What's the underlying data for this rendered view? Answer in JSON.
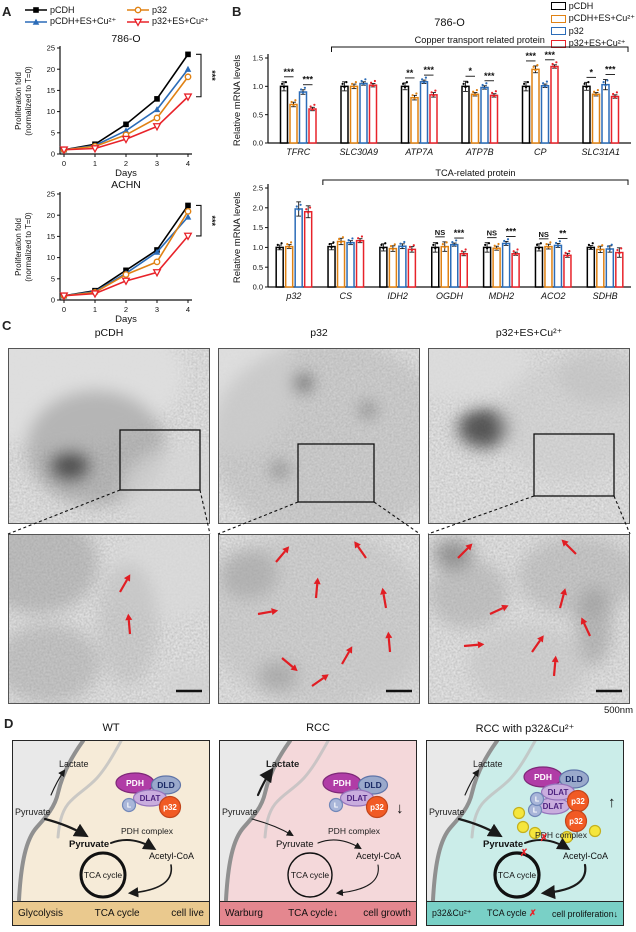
{
  "figure": {
    "panel_a": {
      "letter": "A",
      "legend": [
        {
          "label": "pCDH",
          "color": "#000000",
          "marker": "square-filled"
        },
        {
          "label": "p32",
          "color": "#E08214",
          "marker": "circle-open"
        },
        {
          "label": "pCDH+ES+Cu²⁺",
          "color": "#2B6CB8",
          "marker": "triangle-filled"
        },
        {
          "label": "p32+ES+Cu²⁺",
          "color": "#E8232A",
          "marker": "triangle-down-open"
        }
      ]
    },
    "panel_b": {
      "letter": "B",
      "legend": [
        {
          "label": "pCDH",
          "color": "#000000"
        },
        {
          "label": "pCDH+ES+Cu²⁺",
          "color": "#E08214"
        },
        {
          "label": "p32",
          "color": "#2B6CB8"
        },
        {
          "label": "p32+ES+Cu²⁺",
          "color": "#E8232A"
        }
      ]
    },
    "panel_c": {
      "letter": "C",
      "scale_label": "500nm",
      "columns": [
        {
          "label": "pCDH",
          "arrows": [
            [
              112,
              58,
              -60
            ],
            [
              122,
              100,
              -95
            ]
          ]
        },
        {
          "label": "p32",
          "arrows": [
            [
              58,
              28,
              -50
            ],
            [
              148,
              24,
              -125
            ],
            [
              40,
              80,
              -10
            ],
            [
              98,
              64,
              -85
            ],
            [
              168,
              74,
              -100
            ],
            [
              64,
              124,
              40
            ],
            [
              124,
              130,
              -60
            ],
            [
              172,
              118,
              -95
            ],
            [
              94,
              152,
              -35
            ]
          ]
        },
        {
          "label": "p32+ES+Cu²⁺",
          "arrows": [
            [
              30,
              24,
              -45
            ],
            [
              148,
              20,
              -135
            ],
            [
              62,
              80,
              -25
            ],
            [
              132,
              74,
              -75
            ],
            [
              36,
              112,
              -5
            ],
            [
              104,
              118,
              -55
            ],
            [
              162,
              102,
              -115
            ],
            [
              126,
              142,
              -85
            ]
          ]
        }
      ]
    },
    "panel_d": {
      "letter": "D",
      "outside_color": "#E9E9E9",
      "membrane_color": "#909090",
      "boxes": [
        {
          "title": "WT",
          "cell_color": "#F6EBD8",
          "strip_color": "#EAC98E",
          "labels": {
            "lactate": "Lactate",
            "pyruvate_out": "Pyruvate",
            "pyruvate_in": "Pyruvate",
            "pdh_complex": "PDH complex",
            "acetyl": "Acetyl-CoA",
            "tca": "TCA cycle"
          },
          "bold": {
            "lactate": false,
            "pyruvate_in": true
          },
          "flux": {
            "lactate_arrow": "thin",
            "pyruvate_arrow": "thick",
            "pdh_arrow": "thick",
            "tca_circle": "thick"
          },
          "complex": {
            "pdh": "PDH",
            "dld": "DLD",
            "dlat": "DLAT",
            "l": "L",
            "p32": "p32",
            "p32_trend": null,
            "cu_ions": 0,
            "extra_dlat": false
          },
          "red_x": [],
          "strip": [
            [
              {
                "t": "Glycolysis"
              }
            ],
            [
              {
                "t": "TCA cycle"
              }
            ],
            [
              {
                "t": "cell live"
              }
            ]
          ]
        },
        {
          "title": "RCC",
          "cell_color": "#F4D8DA",
          "strip_color": "#E4878F",
          "labels": {
            "lactate": "Lactate",
            "pyruvate_out": "Pyruvate",
            "pyruvate_in": "Pyruvate",
            "pdh_complex": "PDH complex",
            "acetyl": "Acetyl-CoA",
            "tca": "TCA cycle"
          },
          "bold": {
            "lactate": true,
            "pyruvate_in": false
          },
          "flux": {
            "lactate_arrow": "thick",
            "pyruvate_arrow": "thin",
            "pdh_arrow": "thin",
            "tca_circle": "thin"
          },
          "complex": {
            "pdh": "PDH",
            "dld": "DLD",
            "dlat": "DLAT",
            "l": "L",
            "p32": "p32",
            "p32_trend": "↓",
            "cu_ions": 0,
            "extra_dlat": false
          },
          "red_x": [],
          "strip": [
            [
              {
                "t": "Warburg"
              }
            ],
            [
              {
                "t": "TCA cycle"
              },
              {
                "t": "↓"
              }
            ],
            [
              {
                "t": "cell growth"
              }
            ]
          ]
        },
        {
          "title": "RCC with p32&Cu²⁺",
          "cell_color": "#CBEDE9",
          "strip_color": "#79D0C6",
          "labels": {
            "lactate": "Lactate",
            "pyruvate_out": "Pyruvate",
            "pyruvate_in": "Pyruvate",
            "pdh_complex": "PDH complex",
            "acetyl": "Acetyl-CoA",
            "tca": "TCA cycle"
          },
          "bold": {
            "lactate": false,
            "pyruvate_in": true
          },
          "flux": {
            "lactate_arrow": "thin",
            "pyruvate_arrow": "thick",
            "pdh_arrow": "thick",
            "tca_circle": "thick"
          },
          "complex": {
            "pdh": "PDH",
            "dld": "DLD",
            "dlat": "DLAT",
            "l": "L",
            "p32": "p32",
            "p32_trend": "↑",
            "cu_ions": 5,
            "extra_dlat": true
          },
          "red_x": [
            "pdh_arrow",
            "tca_circle"
          ],
          "strip": [
            [
              {
                "t": "p32&Cu²⁺"
              }
            ],
            [
              {
                "t": "TCA cycle "
              },
              {
                "t": "✗",
                "c": "#E8232A"
              }
            ],
            [
              {
                "t": "cell proliferation"
              },
              {
                "t": "↓"
              }
            ]
          ]
        }
      ]
    }
  },
  "chart_data": [
    {
      "id": "prolif_786o",
      "type": "line",
      "title": "786-O",
      "xlabel": "Days",
      "ylabel_lines": [
        "Proliferation fold",
        "(normalized to T=0)"
      ],
      "x": [
        0,
        1,
        2,
        3,
        4
      ],
      "ylim": [
        0,
        25
      ],
      "yticks": [
        0,
        5,
        10,
        15,
        20,
        25
      ],
      "series": [
        {
          "name": "pCDH",
          "color": "#000000",
          "marker": "square-filled",
          "values": [
            1,
            2.3,
            7.0,
            13.0,
            23.5
          ]
        },
        {
          "name": "pCDH+ES+Cu²⁺",
          "color": "#2B6CB8",
          "marker": "triangle-filled",
          "values": [
            1,
            2.0,
            5.5,
            10.5,
            20.0
          ]
        },
        {
          "name": "p32",
          "color": "#E08214",
          "marker": "circle-open",
          "values": [
            1,
            1.8,
            4.5,
            8.5,
            18.2
          ]
        },
        {
          "name": "p32+ES+Cu²⁺",
          "color": "#E8232A",
          "marker": "triangle-down-open",
          "values": [
            1,
            1.3,
            3.5,
            6.5,
            13.5
          ]
        }
      ],
      "significance": "***"
    },
    {
      "id": "prolif_achn",
      "type": "line",
      "title": "ACHN",
      "xlabel": "Days",
      "ylabel_lines": [
        "Proliferation fold",
        "(normalized to T=0)"
      ],
      "x": [
        0,
        1,
        2,
        3,
        4
      ],
      "ylim": [
        0,
        25
      ],
      "yticks": [
        0,
        5,
        10,
        15,
        20,
        25
      ],
      "series": [
        {
          "name": "pCDH",
          "color": "#000000",
          "marker": "square-filled",
          "values": [
            1,
            2.2,
            7.0,
            11.8,
            22.3
          ]
        },
        {
          "name": "pCDH+ES+Cu²⁺",
          "color": "#2B6CB8",
          "marker": "triangle-filled",
          "values": [
            1,
            2.0,
            6.3,
            11.3,
            19.6
          ]
        },
        {
          "name": "p32",
          "color": "#E08214",
          "marker": "circle-open",
          "values": [
            1,
            1.8,
            6.0,
            9.0,
            20.9
          ]
        },
        {
          "name": "p32+ES+Cu²⁺",
          "color": "#E8232A",
          "marker": "triangle-down-open",
          "values": [
            1,
            1.5,
            4.5,
            6.5,
            15.1
          ]
        }
      ],
      "significance": "***"
    },
    {
      "id": "mrna_copper",
      "type": "grouped_bar",
      "title": "786-O",
      "bracket_label": "Copper transport related protein",
      "bracket_from": 1,
      "ylabel": "Relative mRNA levels",
      "ylim": [
        0,
        1.5
      ],
      "yticks": [
        0,
        0.5,
        1,
        1.5
      ],
      "categories": [
        "TFRC",
        "SLC30A9",
        "ATP7A",
        "ATP7B",
        "CP",
        "SLC31A1"
      ],
      "series": [
        {
          "name": "pCDH",
          "color": "#000000",
          "values": [
            1.0,
            1.0,
            1.0,
            1.0,
            1.0,
            1.0
          ],
          "errors": [
            0.08,
            0.08,
            0.06,
            0.09,
            0.08,
            0.07
          ]
        },
        {
          "name": "pCDH+ES+Cu²⁺",
          "color": "#E08214",
          "values": [
            0.68,
            1.0,
            0.8,
            0.86,
            1.3,
            0.86
          ],
          "errors": [
            0.04,
            0.04,
            0.04,
            0.03,
            0.06,
            0.03
          ]
        },
        {
          "name": "p32",
          "color": "#2B6CB8",
          "values": [
            0.9,
            1.05,
            1.08,
            0.98,
            1.01,
            1.03
          ],
          "errors": [
            0.04,
            0.03,
            0.03,
            0.03,
            0.03,
            0.09
          ]
        },
        {
          "name": "p32+ES+Cu²⁺",
          "color": "#E8232A",
          "values": [
            0.6,
            1.02,
            0.85,
            0.84,
            1.35,
            0.82
          ],
          "errors": [
            0.03,
            0.03,
            0.04,
            0.03,
            0.03,
            0.03
          ]
        }
      ],
      "sig": [
        [
          "***",
          "***"
        ],
        [
          null,
          null
        ],
        [
          "**",
          "***"
        ],
        [
          "*",
          "***"
        ],
        [
          "***",
          "***"
        ],
        [
          "*",
          "***"
        ]
      ]
    },
    {
      "id": "mrna_tca",
      "type": "grouped_bar",
      "title": null,
      "bracket_label": "TCA-related protein",
      "bracket_from": 1,
      "ylabel": "Relative mRNA levels",
      "ylim": [
        0,
        2.5
      ],
      "yticks": [
        0,
        0.5,
        1,
        1.5,
        2,
        2.5
      ],
      "categories": [
        "p32",
        "CS",
        "IDH2",
        "OGDH",
        "MDH2",
        "ACO2",
        "SDHB"
      ],
      "series": [
        {
          "name": "pCDH",
          "color": "#000000",
          "values": [
            1.0,
            1.02,
            1.0,
            1.0,
            1.0,
            1.0,
            1.0
          ],
          "errors": [
            0.06,
            0.08,
            0.09,
            0.12,
            0.12,
            0.09,
            0.05
          ]
        },
        {
          "name": "pCDH+ES+Cu²⁺",
          "color": "#E08214",
          "values": [
            1.02,
            1.15,
            0.97,
            1.02,
            0.98,
            1.02,
            0.95
          ],
          "errors": [
            0.05,
            0.08,
            0.07,
            0.12,
            0.05,
            0.06,
            0.08
          ]
        },
        {
          "name": "p32",
          "color": "#2B6CB8",
          "values": [
            1.97,
            1.12,
            1.03,
            1.07,
            1.1,
            1.05,
            0.96
          ],
          "errors": [
            0.18,
            0.05,
            0.06,
            0.04,
            0.05,
            0.05,
            0.08
          ]
        },
        {
          "name": "p32+ES+Cu²⁺",
          "color": "#E8232A",
          "values": [
            1.9,
            1.17,
            0.95,
            0.84,
            0.84,
            0.8,
            0.87
          ],
          "errors": [
            0.15,
            0.05,
            0.07,
            0.05,
            0.04,
            0.05,
            0.12
          ]
        }
      ],
      "sig": [
        [
          null,
          null
        ],
        [
          null,
          null
        ],
        [
          null,
          null
        ],
        [
          "NS",
          "***"
        ],
        [
          "NS",
          "***"
        ],
        [
          "NS",
          "**"
        ],
        [
          null,
          null
        ]
      ]
    }
  ]
}
